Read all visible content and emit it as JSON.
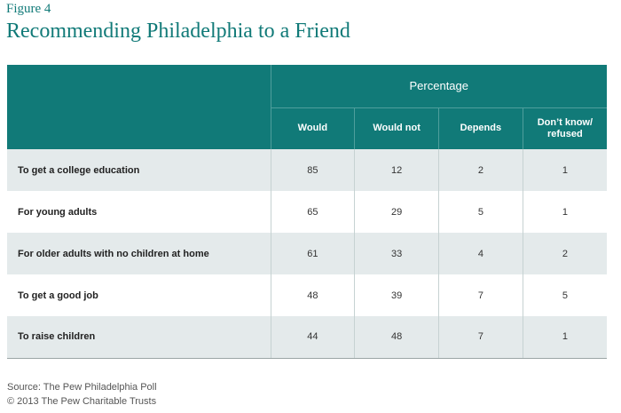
{
  "figure_label": "Figure 4",
  "title": "Recommending Philadelphia to a Friend",
  "chart_data": {
    "type": "table",
    "group_header": "Percentage",
    "columns": [
      "Would",
      "Would not",
      "Depends",
      "Don’t know/ refused"
    ],
    "rows": [
      {
        "label": "To get a college education",
        "values": [
          85,
          12,
          2,
          1
        ]
      },
      {
        "label": "For young adults",
        "values": [
          65,
          29,
          5,
          1
        ]
      },
      {
        "label": "For older adults with no children at home",
        "values": [
          61,
          33,
          4,
          2
        ]
      },
      {
        "label": "To get a good job",
        "values": [
          48,
          39,
          7,
          5
        ]
      },
      {
        "label": "To raise children",
        "values": [
          44,
          48,
          7,
          1
        ]
      }
    ]
  },
  "source": "Source: The Pew Philadelphia Poll",
  "copyright": "© 2013 The Pew Charitable Trusts",
  "colors": {
    "header": "#117a78",
    "title": "#117a78",
    "row_shade": "#e4eaeb"
  }
}
